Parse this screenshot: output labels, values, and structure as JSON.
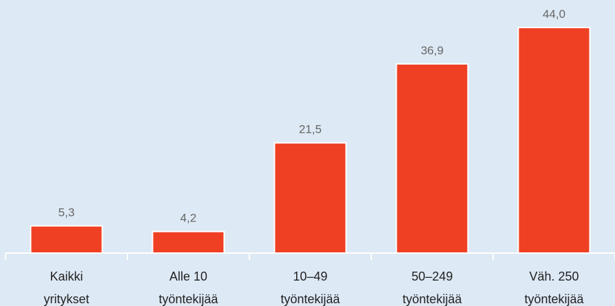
{
  "chart_data": {
    "type": "bar",
    "categories": [
      "Kaikki\nyritykset",
      "Alle 10\ntyöntekijää",
      "10–49\ntyöntekijää",
      "50–249\ntyöntekijää",
      "Väh. 250\ntyöntekijää"
    ],
    "values": [
      5.3,
      4.2,
      21.5,
      36.9,
      44.0
    ],
    "value_labels": [
      "5,3",
      "4,2",
      "21,5",
      "36,9",
      "44,0"
    ],
    "color": "#f04023"
  }
}
